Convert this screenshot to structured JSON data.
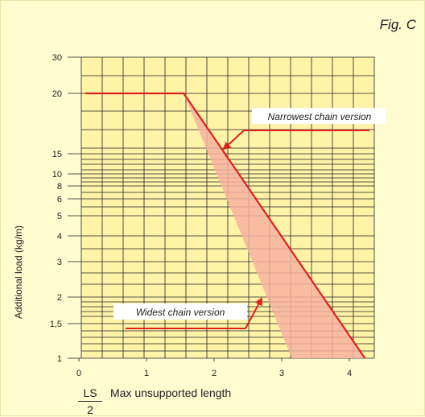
{
  "figure_label": "Fig. C",
  "chart_data": {
    "type": "line",
    "title": "",
    "xlabel": "Max unsupported length",
    "xlabel_fraction": {
      "numerator": "LS",
      "denominator": "2"
    },
    "ylabel": "Additional load (kg/m)",
    "x_ticks": [
      "0",
      "1",
      "2",
      "3",
      "4"
    ],
    "y_ticks": [
      "1",
      "1,5",
      "2",
      "3",
      "4",
      "5",
      "6",
      "8",
      "10",
      "15",
      "20",
      "30"
    ],
    "xlim": [
      0,
      4.5
    ],
    "grid": true,
    "series": [
      {
        "name": "Narrowest chain version",
        "x": [
          0.1,
          1.55,
          4.23
        ],
        "y": [
          20,
          20,
          1
        ]
      },
      {
        "name": "Widest chain version",
        "x": [
          0.1,
          1.55,
          3.15
        ],
        "y": [
          20,
          20,
          1
        ]
      }
    ],
    "annotations": [
      "Narrowest chain version",
      "Widest chain version"
    ],
    "colors": {
      "line": "#e02020",
      "band": "#f7b2a0",
      "grid": "#222222",
      "plot_bg": "#fff3a8",
      "page_bg": "#fffcd0"
    }
  }
}
